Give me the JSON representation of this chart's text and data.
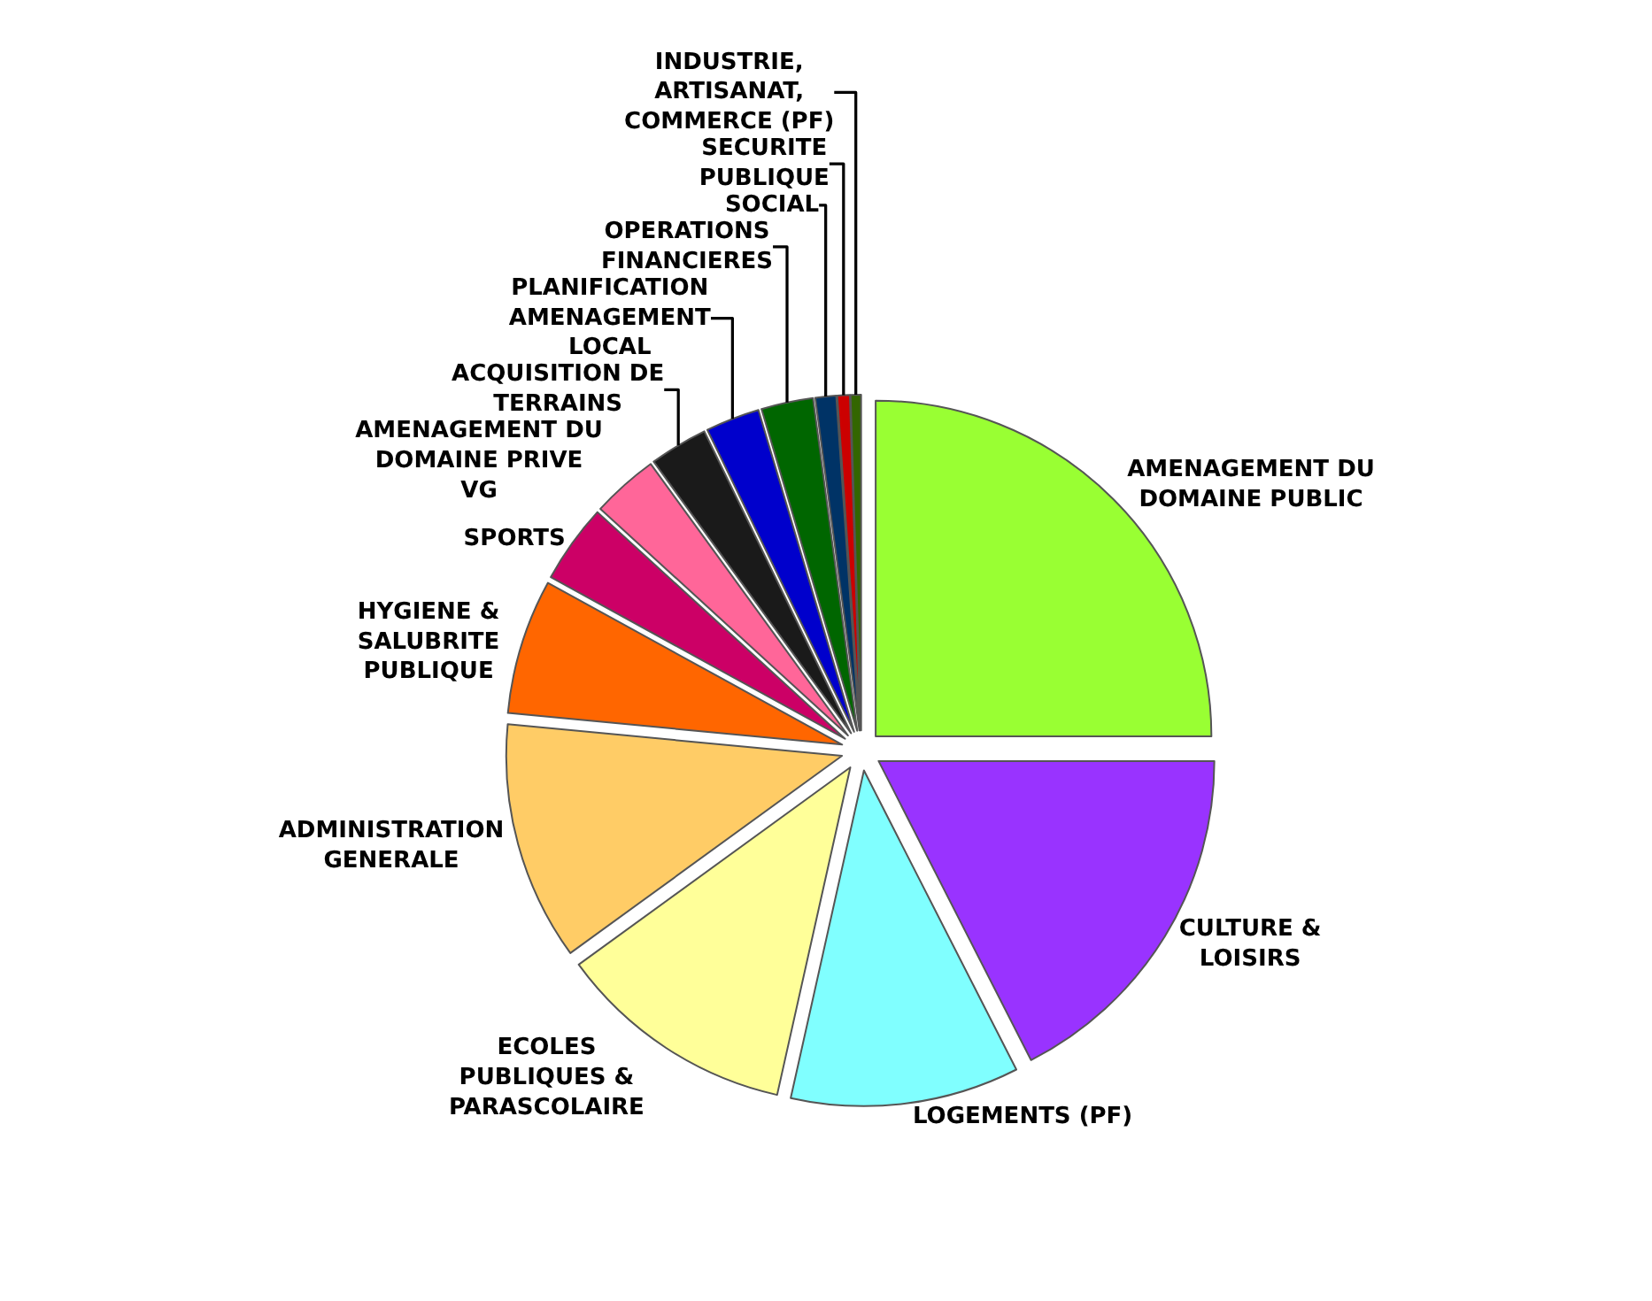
{
  "chart_data": {
    "type": "pie",
    "legend": false,
    "categories": [
      "AMENAGEMENT DU DOMAINE PUBLIC",
      "CULTURE & LOISIRS",
      "LOGEMENTS (PF)",
      "ECOLES PUBLIQUES & PARASCOLAIRE",
      "ADMINISTRATION GENERALE",
      "HYGIENE & SALUBRITE PUBLIQUE",
      "SPORTS",
      "AMENAGEMENT DU DOMAINE PRIVE VG",
      "ACQUISITION DE TERRAINS",
      "PLANIFICATION AMENAGEMENT LOCAL",
      "OPERATIONS FINANCIERES",
      "SOCIAL",
      "SECURITE PUBLIQUE",
      "INDUSTRIE, ARTISANAT, COMMERCE (PF)"
    ],
    "values": [
      25,
      17.5,
      11,
      11.5,
      11.5,
      6.5,
      3.8,
      3.2,
      2.8,
      2.6,
      2.5,
      1,
      0.6,
      0.5
    ],
    "colors": [
      "#99ff33",
      "#9933ff",
      "#80ffff",
      "#ffff99",
      "#ffcc66",
      "#ff6600",
      "#cc0066",
      "#ff6699",
      "#1a1a1a",
      "#0000cc",
      "#006600",
      "#003366",
      "#cc0000",
      "#336600"
    ]
  }
}
